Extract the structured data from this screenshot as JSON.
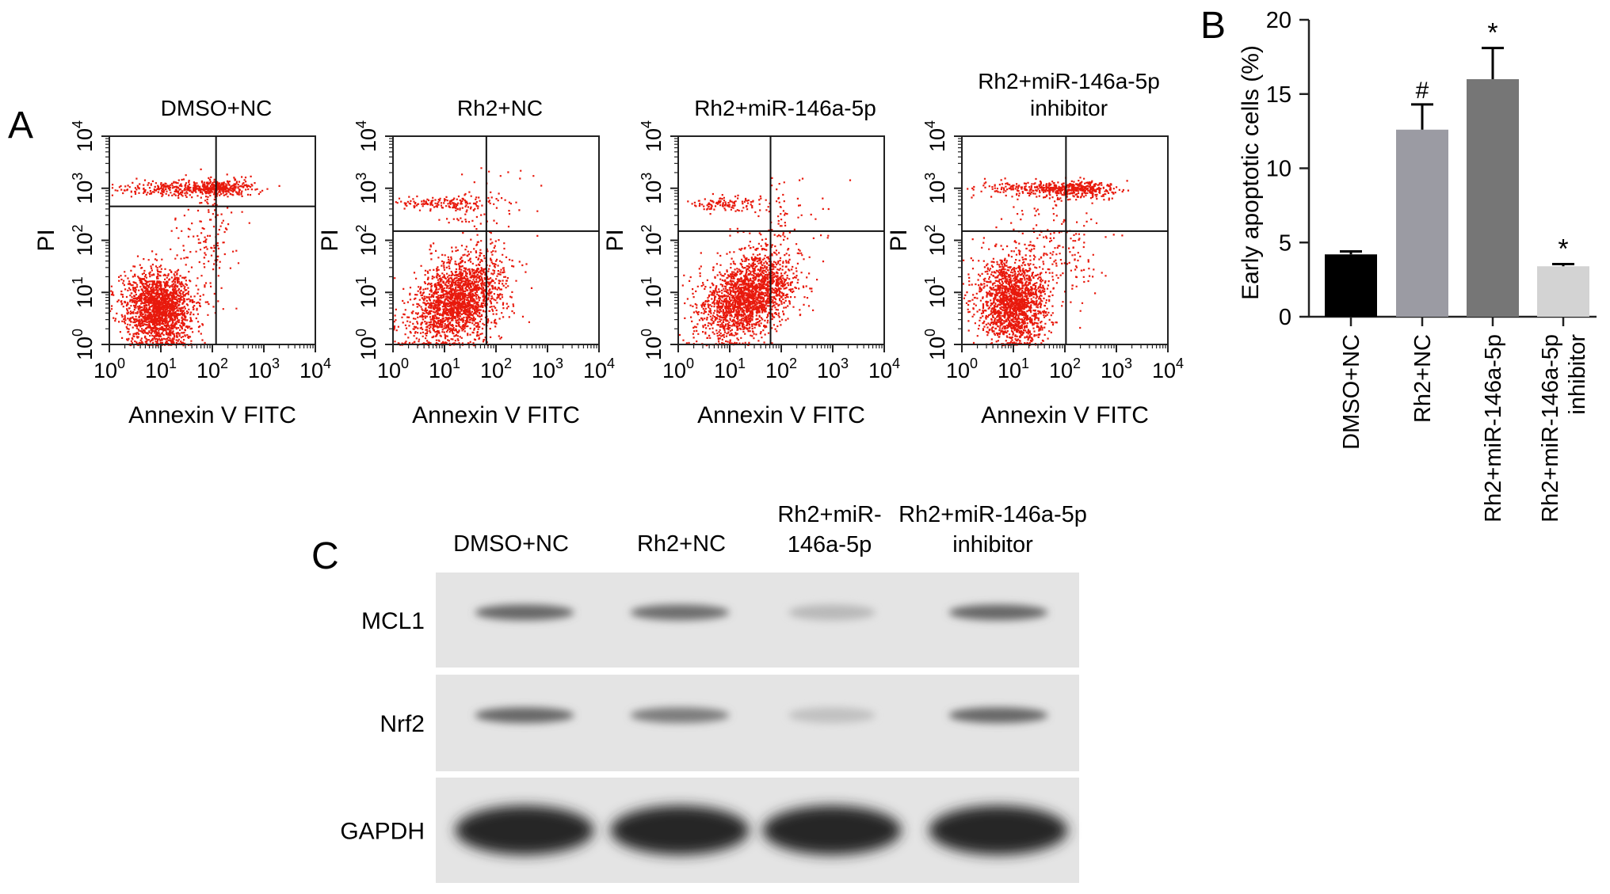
{
  "panel_letters": {
    "a": "A",
    "b": "B",
    "c": "C"
  },
  "colors": {
    "dots": "#e8190c",
    "axis": "#222222",
    "gate": "#111111",
    "blot_bg": "#e4e4e4",
    "band": "#3a3a3a"
  },
  "flow": {
    "xlabel": "Annexin V FITC",
    "ylabel": "PI",
    "tick_base": "10",
    "tick_exponents": [
      "0",
      "1",
      "2",
      "3",
      "4"
    ],
    "scale": "log10",
    "range": [
      1,
      10000
    ],
    "plots": [
      {
        "title_lines": [
          "DMSO+NC"
        ],
        "gate_x": 118,
        "gate_y": 448
      },
      {
        "title_lines": [
          "Rh2+NC"
        ],
        "gate_x": 65,
        "gate_y": 150
      },
      {
        "title_lines": [
          "Rh2+miR-146a-5p"
        ],
        "gate_x": 62,
        "gate_y": 150
      },
      {
        "title_lines": [
          "Rh2+miR-146a-5p",
          "inhibitor"
        ],
        "gate_x": 105,
        "gate_y": 150
      }
    ]
  },
  "chart_data": {
    "type": "bar",
    "title": "",
    "xlabel": "",
    "ylabel": "Early apoptotic cells (%)",
    "ylim": [
      0,
      20
    ],
    "yticks": [
      "0",
      "5",
      "10",
      "15",
      "20"
    ],
    "categories": [
      "DMSO+NC",
      "Rh2+NC",
      "Rh2+miR-146a-5p",
      "Rh2+miR-146a-5p inhibitor"
    ],
    "category_lines": [
      [
        "DMSO+NC"
      ],
      [
        "Rh2+NC"
      ],
      [
        "Rh2+miR-146a-5p"
      ],
      [
        "Rh2+miR-146a-5p",
        "inhibitor"
      ]
    ],
    "values": [
      4.2,
      12.6,
      16.0,
      3.4
    ],
    "errors": [
      0.2,
      1.7,
      2.1,
      0.15
    ],
    "significance": [
      "",
      "#",
      "*",
      "*"
    ],
    "bar_colors": [
      "#000000",
      "#9b9ba3",
      "#767676",
      "#d3d3d3"
    ],
    "grid": false,
    "legend": "none"
  },
  "blot": {
    "columns": [
      {
        "lines": [
          "DMSO+NC"
        ]
      },
      {
        "lines": [
          "Rh2+NC"
        ]
      },
      {
        "lines": [
          "Rh2+miR-",
          "146a-5p"
        ]
      },
      {
        "lines": [
          "Rh2+miR-146a-5p",
          "inhibitor"
        ]
      }
    ],
    "rows": [
      {
        "label": "MCL1",
        "intensity": [
          0.85,
          0.8,
          0.3,
          0.85
        ]
      },
      {
        "label": "Nrf2",
        "intensity": [
          0.85,
          0.7,
          0.25,
          0.85
        ]
      },
      {
        "label": "GAPDH",
        "intensity": [
          1.0,
          1.0,
          1.0,
          1.0
        ]
      }
    ]
  }
}
